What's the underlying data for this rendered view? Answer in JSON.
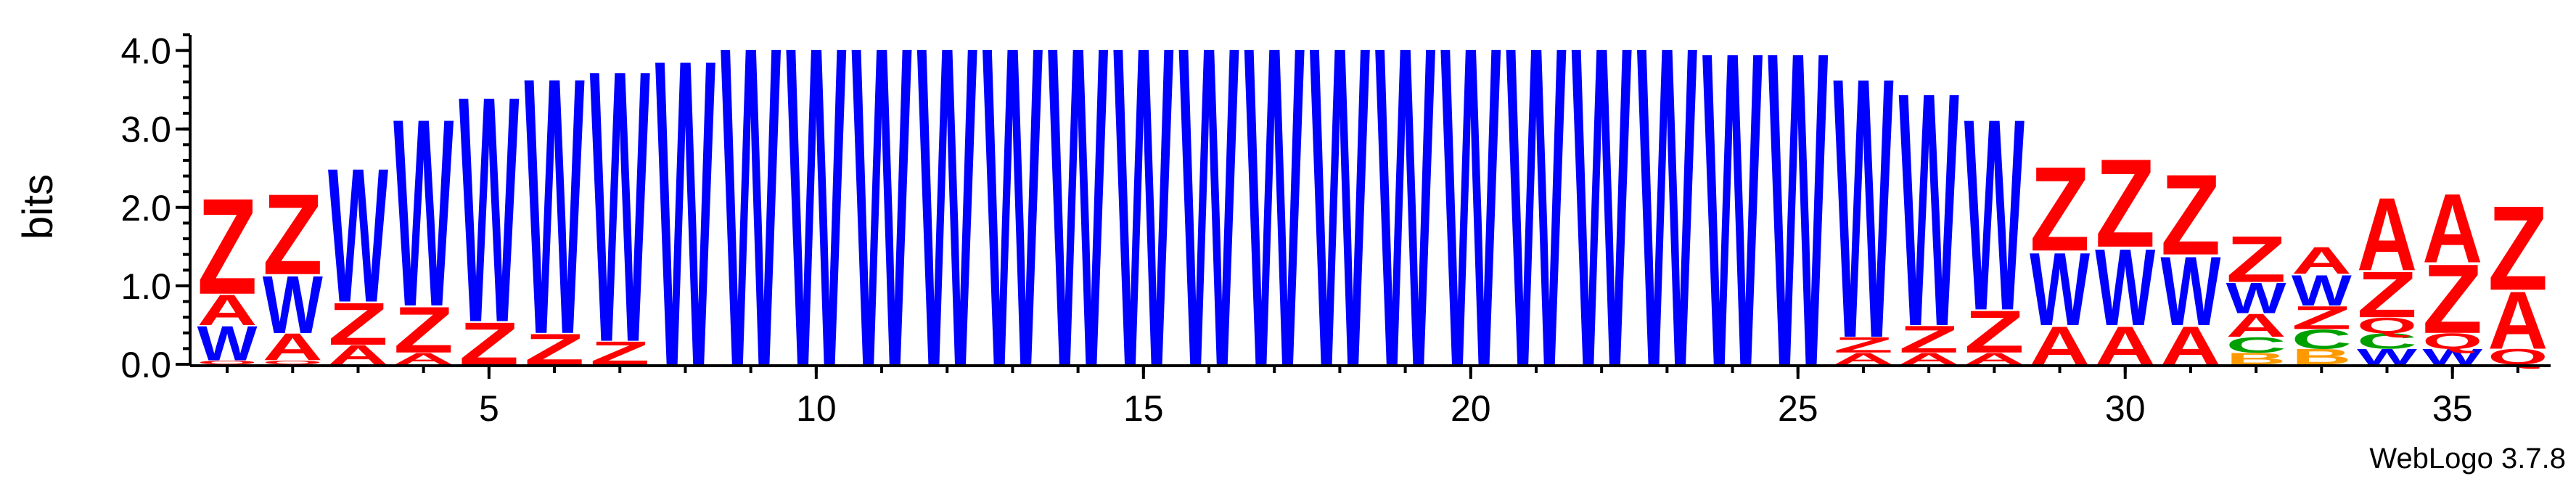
{
  "chart_data": {
    "type": "sequence-logo",
    "ylabel": "bits",
    "ylim": [
      0,
      4.2
    ],
    "yticks": [
      0.0,
      1.0,
      2.0,
      3.0,
      4.0
    ],
    "ytick_labels": [
      "0.0",
      "1.0",
      "2.0",
      "3.0",
      "4.0"
    ],
    "xlim": [
      0.5,
      36.5
    ],
    "xticks": [
      5,
      10,
      15,
      20,
      25,
      30,
      35
    ],
    "xtick_labels": [
      "5",
      "10",
      "15",
      "20",
      "25",
      "30",
      "35"
    ],
    "colors": {
      "W": "#0000ff",
      "Z": "#ff0000",
      "A": "#ff0000",
      "C": "#00a000",
      "Q": "#ff0000",
      "B": "#ff9900"
    },
    "positions": [
      {
        "pos": 1,
        "stack": [
          {
            "letter": "Q",
            "bits": 0.05
          },
          {
            "letter": "W",
            "bits": 0.45
          },
          {
            "letter": "A",
            "bits": 0.4
          },
          {
            "letter": "Z",
            "bits": 1.25
          }
        ]
      },
      {
        "pos": 2,
        "stack": [
          {
            "letter": "Q",
            "bits": 0.05
          },
          {
            "letter": "A",
            "bits": 0.35
          },
          {
            "letter": "W",
            "bits": 0.75
          },
          {
            "letter": "Z",
            "bits": 1.05
          }
        ]
      },
      {
        "pos": 3,
        "stack": [
          {
            "letter": "A",
            "bits": 0.25
          },
          {
            "letter": "Z",
            "bits": 0.55
          },
          {
            "letter": "W",
            "bits": 1.75
          }
        ]
      },
      {
        "pos": 4,
        "stack": [
          {
            "letter": "A",
            "bits": 0.15
          },
          {
            "letter": "Z",
            "bits": 0.6
          },
          {
            "letter": "W",
            "bits": 2.45
          }
        ]
      },
      {
        "pos": 5,
        "stack": [
          {
            "letter": "Z",
            "bits": 0.55
          },
          {
            "letter": "W",
            "bits": 2.95
          }
        ]
      },
      {
        "pos": 6,
        "stack": [
          {
            "letter": "Z",
            "bits": 0.4
          },
          {
            "letter": "W",
            "bits": 3.35
          }
        ]
      },
      {
        "pos": 7,
        "stack": [
          {
            "letter": "Z",
            "bits": 0.3
          },
          {
            "letter": "W",
            "bits": 3.55
          }
        ]
      },
      {
        "pos": 8,
        "stack": [
          {
            "letter": "W",
            "bits": 4.0
          }
        ]
      },
      {
        "pos": 9,
        "stack": [
          {
            "letter": "W",
            "bits": 4.17
          }
        ]
      },
      {
        "pos": 10,
        "stack": [
          {
            "letter": "W",
            "bits": 4.17
          }
        ]
      },
      {
        "pos": 11,
        "stack": [
          {
            "letter": "W",
            "bits": 4.17
          }
        ]
      },
      {
        "pos": 12,
        "stack": [
          {
            "letter": "W",
            "bits": 4.17
          }
        ]
      },
      {
        "pos": 13,
        "stack": [
          {
            "letter": "W",
            "bits": 4.17
          }
        ]
      },
      {
        "pos": 14,
        "stack": [
          {
            "letter": "W",
            "bits": 4.17
          }
        ]
      },
      {
        "pos": 15,
        "stack": [
          {
            "letter": "W",
            "bits": 4.17
          }
        ]
      },
      {
        "pos": 16,
        "stack": [
          {
            "letter": "W",
            "bits": 4.17
          }
        ]
      },
      {
        "pos": 17,
        "stack": [
          {
            "letter": "W",
            "bits": 4.17
          }
        ]
      },
      {
        "pos": 18,
        "stack": [
          {
            "letter": "W",
            "bits": 4.17
          }
        ]
      },
      {
        "pos": 19,
        "stack": [
          {
            "letter": "W",
            "bits": 4.17
          }
        ]
      },
      {
        "pos": 20,
        "stack": [
          {
            "letter": "W",
            "bits": 4.17
          }
        ]
      },
      {
        "pos": 21,
        "stack": [
          {
            "letter": "W",
            "bits": 4.17
          }
        ]
      },
      {
        "pos": 22,
        "stack": [
          {
            "letter": "W",
            "bits": 4.17
          }
        ]
      },
      {
        "pos": 23,
        "stack": [
          {
            "letter": "W",
            "bits": 4.17
          }
        ]
      },
      {
        "pos": 24,
        "stack": [
          {
            "letter": "W",
            "bits": 4.1
          }
        ]
      },
      {
        "pos": 25,
        "stack": [
          {
            "letter": "W",
            "bits": 4.1
          }
        ]
      },
      {
        "pos": 26,
        "stack": [
          {
            "letter": "A",
            "bits": 0.15
          },
          {
            "letter": "Z",
            "bits": 0.2
          },
          {
            "letter": "W",
            "bits": 3.4
          }
        ]
      },
      {
        "pos": 27,
        "stack": [
          {
            "letter": "A",
            "bits": 0.15
          },
          {
            "letter": "Z",
            "bits": 0.35
          },
          {
            "letter": "W",
            "bits": 3.05
          }
        ]
      },
      {
        "pos": 28,
        "stack": [
          {
            "letter": "A",
            "bits": 0.15
          },
          {
            "letter": "Z",
            "bits": 0.55
          },
          {
            "letter": "W",
            "bits": 2.5
          }
        ]
      },
      {
        "pos": 29,
        "stack": [
          {
            "letter": "A",
            "bits": 0.5
          },
          {
            "letter": "W",
            "bits": 0.95
          },
          {
            "letter": "Z",
            "bits": 1.1
          }
        ]
      },
      {
        "pos": 30,
        "stack": [
          {
            "letter": "A",
            "bits": 0.5
          },
          {
            "letter": "W",
            "bits": 1.0
          },
          {
            "letter": "Z",
            "bits": 1.15
          }
        ]
      },
      {
        "pos": 31,
        "stack": [
          {
            "letter": "A",
            "bits": 0.5
          },
          {
            "letter": "W",
            "bits": 0.9
          },
          {
            "letter": "Z",
            "bits": 1.05
          }
        ]
      },
      {
        "pos": 32,
        "stack": [
          {
            "letter": "B",
            "bits": 0.15
          },
          {
            "letter": "C",
            "bits": 0.2
          },
          {
            "letter": "A",
            "bits": 0.3
          },
          {
            "letter": "W",
            "bits": 0.4
          },
          {
            "letter": "Z",
            "bits": 0.6
          }
        ]
      },
      {
        "pos": 33,
        "stack": [
          {
            "letter": "B",
            "bits": 0.2
          },
          {
            "letter": "C",
            "bits": 0.25
          },
          {
            "letter": "Z",
            "bits": 0.3
          },
          {
            "letter": "W",
            "bits": 0.4
          },
          {
            "letter": "A",
            "bits": 0.35
          }
        ]
      },
      {
        "pos": 34,
        "stack": [
          {
            "letter": "W",
            "bits": 0.2
          },
          {
            "letter": "C",
            "bits": 0.2
          },
          {
            "letter": "Q",
            "bits": 0.2
          },
          {
            "letter": "Z",
            "bits": 0.6
          },
          {
            "letter": "A",
            "bits": 0.95
          }
        ]
      },
      {
        "pos": 35,
        "stack": [
          {
            "letter": "W",
            "bits": 0.2
          },
          {
            "letter": "Q",
            "bits": 0.2
          },
          {
            "letter": "Z",
            "bits": 0.9
          },
          {
            "letter": "A",
            "bits": 0.9
          }
        ]
      },
      {
        "pos": 36,
        "stack": [
          {
            "letter": "Q",
            "bits": 0.2
          },
          {
            "letter": "A",
            "bits": 0.75
          },
          {
            "letter": "Z",
            "bits": 1.1
          }
        ]
      }
    ]
  },
  "footer": {
    "text": "WebLogo 3.7.8"
  }
}
